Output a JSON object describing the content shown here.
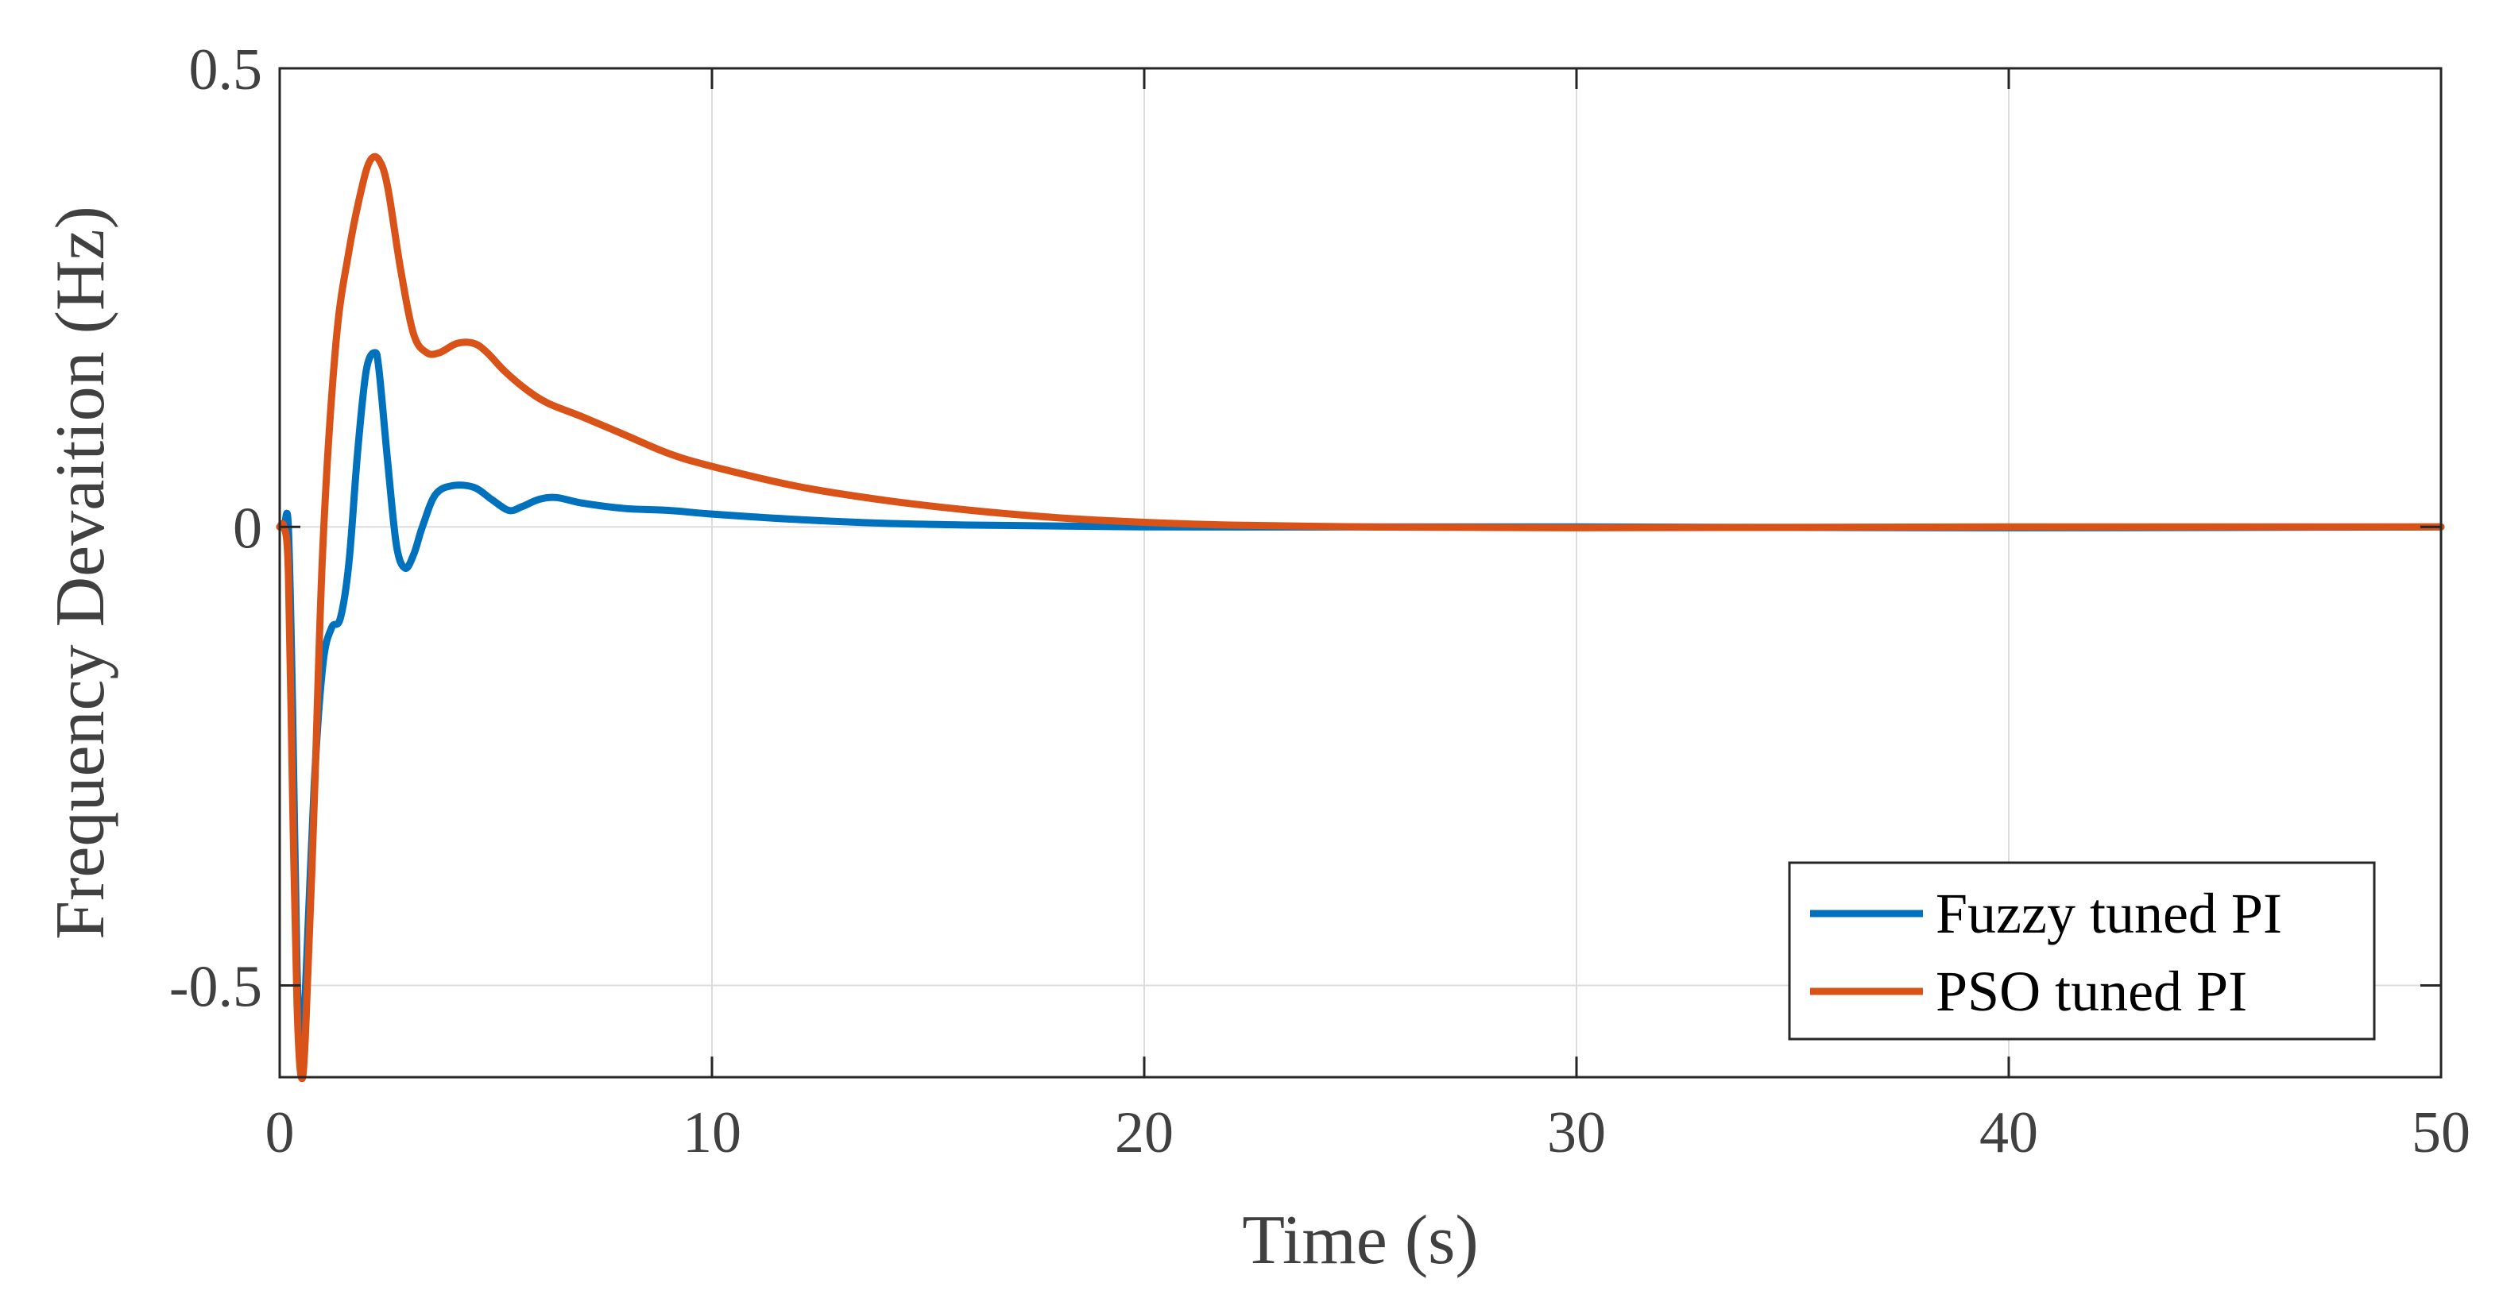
{
  "chart_data": {
    "type": "line",
    "xlabel": "Time (s)",
    "ylabel": "Frequency Devaition (Hz)",
    "xlim": [
      0,
      50
    ],
    "ylim": [
      -0.6,
      0.5
    ],
    "xticks": [
      0,
      10,
      20,
      30,
      40,
      50
    ],
    "xtick_labels": [
      "0",
      "10",
      "20",
      "30",
      "40",
      "50"
    ],
    "yticks": [
      -0.5,
      0,
      0.5
    ],
    "ytick_labels": [
      "-0.5",
      "0",
      "0.5"
    ],
    "grid": true,
    "legend_position": "bottom-right",
    "series": [
      {
        "name": "Fuzzy tuned PI",
        "color": "#0072BD",
        "x": [
          0,
          0.1,
          0.2,
          0.3,
          0.4,
          0.5,
          0.6,
          0.8,
          1.0,
          1.2,
          1.4,
          1.6,
          1.8,
          2.0,
          2.2,
          2.3,
          2.5,
          2.7,
          2.9,
          3.1,
          3.3,
          3.6,
          4.0,
          4.5,
          4.9,
          5.3,
          5.6,
          6.0,
          6.4,
          7.0,
          8.0,
          9.0,
          10,
          12,
          14,
          16,
          20,
          25,
          30,
          40,
          50
        ],
        "y": [
          0,
          0,
          0,
          -0.2,
          -0.48,
          -0.58,
          -0.5,
          -0.28,
          -0.15,
          -0.11,
          -0.1,
          -0.04,
          0.08,
          0.17,
          0.19,
          0.17,
          0.07,
          -0.02,
          -0.045,
          -0.03,
          0.0,
          0.035,
          0.045,
          0.043,
          0.03,
          0.018,
          0.022,
          0.03,
          0.032,
          0.026,
          0.02,
          0.018,
          0.014,
          0.008,
          0.004,
          0.002,
          0.0,
          0.0,
          0.0,
          -0.001,
          0.0
        ]
      },
      {
        "name": "PSO tuned PI",
        "color": "#D95319",
        "x": [
          0,
          0.1,
          0.2,
          0.3,
          0.4,
          0.5,
          0.6,
          0.8,
          1.0,
          1.3,
          1.6,
          1.9,
          2.1,
          2.3,
          2.5,
          2.8,
          3.1,
          3.4,
          3.7,
          4.1,
          4.5,
          4.8,
          5.2,
          5.7,
          6.2,
          7.0,
          8.0,
          9.0,
          10,
          12,
          14,
          16,
          18,
          20,
          22,
          25,
          30,
          40,
          50
        ],
        "y": [
          0,
          0,
          -0.05,
          -0.3,
          -0.52,
          -0.6,
          -0.55,
          -0.3,
          -0.02,
          0.2,
          0.3,
          0.37,
          0.4,
          0.4,
          0.37,
          0.28,
          0.21,
          0.19,
          0.19,
          0.2,
          0.2,
          0.19,
          0.17,
          0.15,
          0.135,
          0.12,
          0.1,
          0.08,
          0.066,
          0.044,
          0.029,
          0.018,
          0.01,
          0.005,
          0.002,
          0.0,
          -0.001,
          0.0,
          0.0
        ]
      }
    ]
  }
}
